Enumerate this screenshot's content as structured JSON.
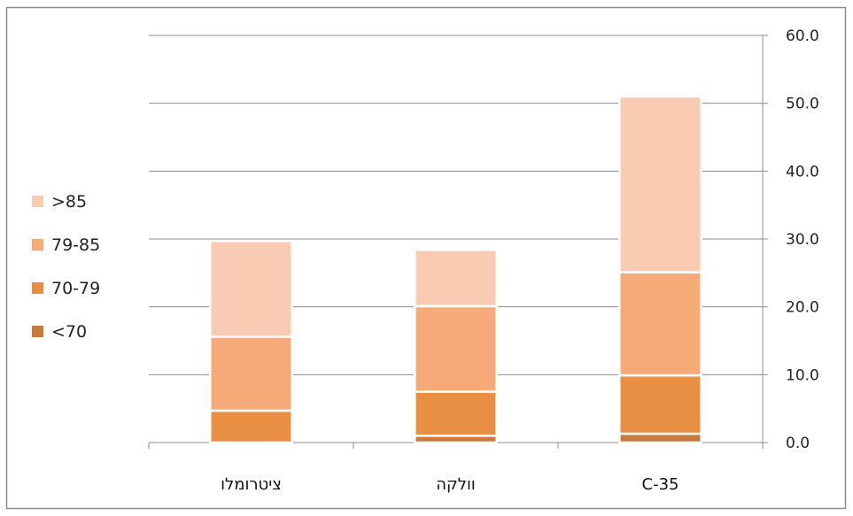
{
  "chart_data": {
    "type": "bar",
    "stacked": true,
    "categories": [
      "ציטרומלו",
      "וולקה",
      "C-35"
    ],
    "series": [
      {
        "name": "<70",
        "color": "#C87A3E",
        "values": [
          0,
          1.0,
          1.3
        ]
      },
      {
        "name": "70-79",
        "color": "#E88F44",
        "values": [
          4.7,
          6.5,
          8.6
        ]
      },
      {
        "name": "79-85",
        "color": "#F5AA78",
        "values": [
          10.9,
          12.6,
          15.2
        ]
      },
      {
        "name": ">85",
        "color": "#F8CBB2",
        "values": [
          14.1,
          8.3,
          25.9
        ]
      }
    ],
    "yticks": [
      "0.0",
      "10.0",
      "20.0",
      "30.0",
      "40.0",
      "50.0",
      "60.0"
    ],
    "ylim": [
      0,
      60
    ],
    "yaxis_side": "right",
    "grid": true,
    "legend_position": "left",
    "title": "",
    "xlabel": "",
    "ylabel": ""
  }
}
